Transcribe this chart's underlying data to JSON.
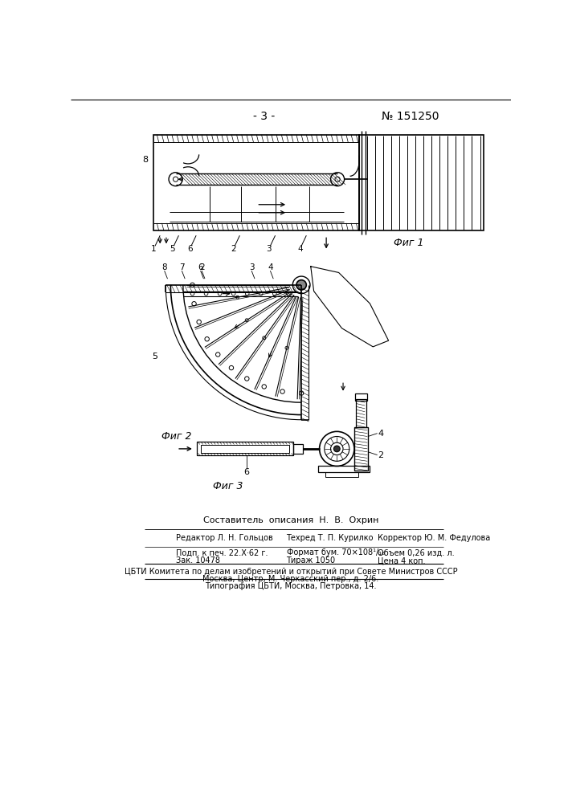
{
  "page_number": "- 3 -",
  "patent_number": "№ 151250",
  "fig1_label": "Фиг 1",
  "fig2_label": "Фиг 2",
  "fig3_label": "Фиг 3",
  "author_line": "Составитель  описания  Н.  В.  Охрин",
  "editor_label": "Редактор Л. Н. Гольцов",
  "techred_label": "Техред Т. П. Курилко",
  "corrector_label": "Корректор Ю. М. Федулова",
  "podp_label": "Подп. к печ. 22.Х·62 г.",
  "format_label": "Формат бум. 70×108¹/₁₆",
  "obem_label": "Объем 0,26 изд. л.",
  "zak_label": "Зак. 10478",
  "tirazh_label": "Тираж 1050",
  "cena_label": "Цена 4 коп.",
  "cbti_label": "ЦБТИ Комитета по делам изобретений и открытий при Совете Министров СССР",
  "moscow_label": "Москва, Центр, М. Черкасский пер., д. 2/6.",
  "tipografia_label": "Типография ЦБТИ, Москва, Петровка, 14.",
  "bg_color": "#ffffff"
}
